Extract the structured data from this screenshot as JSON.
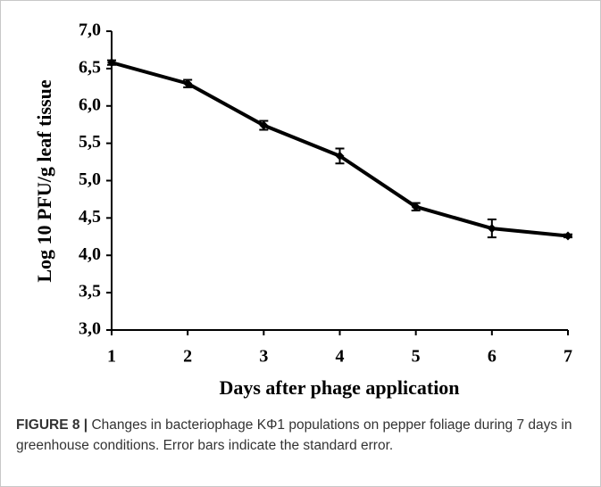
{
  "chart_data": {
    "type": "line",
    "y_label": "Log 10 PFU/g leaf tissue",
    "x_label": "Days after phage application",
    "x": [
      1,
      2,
      3,
      4,
      5,
      6,
      7
    ],
    "values": [
      6.58,
      6.3,
      5.74,
      5.33,
      4.65,
      4.36,
      4.26
    ],
    "errors": [
      0.03,
      0.05,
      0.06,
      0.1,
      0.05,
      0.12,
      0.02
    ],
    "color": "#000000",
    "xlim": [
      1,
      7
    ],
    "xticks": [
      1,
      2,
      3,
      4,
      5,
      6,
      7
    ],
    "ylim": [
      3,
      7
    ],
    "yticks": [
      {
        "value": 3,
        "label": "3,0"
      },
      {
        "value": 3.5,
        "label": "3,5"
      },
      {
        "value": 4,
        "label": "4,0"
      },
      {
        "value": 4.5,
        "label": "4,5"
      },
      {
        "value": 5,
        "label": "5,0"
      },
      {
        "value": 5.5,
        "label": "5,5"
      },
      {
        "value": 6,
        "label": "6,0"
      },
      {
        "value": 6.5,
        "label": "6,5"
      },
      {
        "value": 7,
        "label": "7,0"
      }
    ],
    "grid": false
  },
  "caption": {
    "label": "FIGURE 8 |",
    "text": "Changes in bacteriophage KΦ1 populations on pepper foliage during 7 days in greenhouse conditions. Error bars indicate the standard error."
  }
}
